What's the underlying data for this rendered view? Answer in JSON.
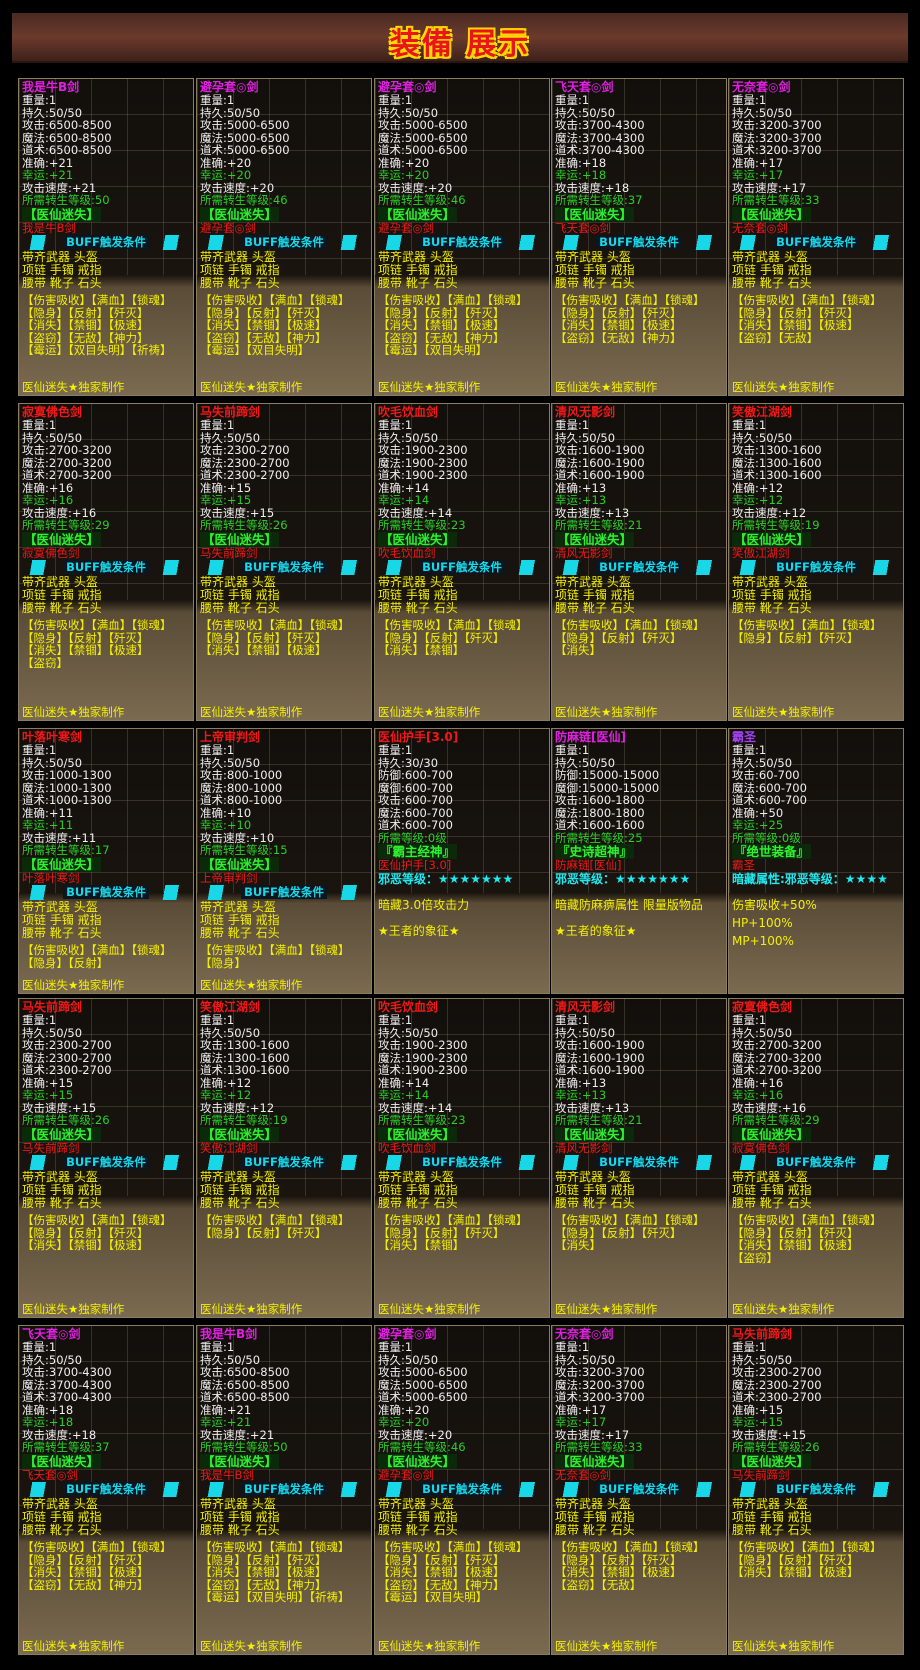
{
  "header": {
    "title": "装備 展示"
  },
  "common": {
    "buff_title": "BUFF触发条件",
    "buff": [
      "带齐武器 头盔",
      "项链 手镯 戒指",
      "腰带 靴子 石头"
    ],
    "footer": "医仙迷失★独家制作",
    "tag": "【医仙迷失】"
  },
  "colors": {
    "magenta": "#e020e0",
    "red": "#f01818",
    "green": "#28d028",
    "yellow": "#f4f000",
    "cyan": "#20e8f0"
  },
  "cards": [
    {
      "name": "我是牛B剑",
      "nc": "#e020e0",
      "lines": [
        "重量:1",
        "持久:50/50",
        "攻击:6500-8500",
        "魔法:6500-8500",
        "道术:6500-8500",
        "准确:+21"
      ],
      "luck": "幸运:+21",
      "speed": "攻击速度:+21",
      "req": "所需转生等级:50",
      "sub": "我是牛B剑",
      "skills": [
        "【伤害吸收】【满血】【锁魂】",
        "【隐身】【反射】【歼灭】",
        "【消失】【禁锢】【极速】",
        "【盗窃】【无敌】【神力】",
        "【霉运】【双目失明】【祈祷】"
      ]
    },
    {
      "name": "避孕套◎剑",
      "nc": "#e020e0",
      "lines": [
        "重量:1",
        "持久:50/50",
        "攻击:5000-6500",
        "魔法:5000-6500",
        "道术:5000-6500",
        "准确:+20"
      ],
      "luck": "幸运:+20",
      "speed": "攻击速度:+20",
      "req": "所需转生等级:46",
      "sub": "避孕套◎剑",
      "skills": [
        "【伤害吸收】【满血】【锁魂】",
        "【隐身】【反射】【歼灭】",
        "【消失】【禁锢】【极速】",
        "【盗窃】【无敌】【神力】",
        "【霉运】【双目失明】"
      ]
    },
    {
      "name": "避孕套◎剑",
      "nc": "#e020e0",
      "lines": [
        "重量:1",
        "持久:50/50",
        "攻击:5000-6500",
        "魔法:5000-6500",
        "道术:5000-6500",
        "准确:+20"
      ],
      "luck": "幸运:+20",
      "speed": "攻击速度:+20",
      "req": "所需转生等级:46",
      "sub": "避孕套◎剑",
      "skills": [
        "【伤害吸收】【满血】【锁魂】",
        "【隐身】【反射】【歼灭】",
        "【消失】【禁锢】【极速】",
        "【盗窃】【无敌】【神力】",
        "【霉运】【双目失明】"
      ]
    },
    {
      "name": "飞天套◎剑",
      "nc": "#e020e0",
      "lines": [
        "重量:1",
        "持久:50/50",
        "攻击:3700-4300",
        "魔法:3700-4300",
        "道术:3700-4300",
        "准确:+18"
      ],
      "luck": "幸运:+18",
      "speed": "攻击速度:+18",
      "req": "所需转生等级:37",
      "sub": "飞天套◎剑",
      "skills": [
        "【伤害吸收】【满血】【锁魂】",
        "【隐身】【反射】【歼灭】",
        "【消失】【禁锢】【极速】",
        "【盗窃】【无敌】【神力】"
      ]
    },
    {
      "name": "无奈套◎剑",
      "nc": "#e020e0",
      "lines": [
        "重量:1",
        "持久:50/50",
        "攻击:3200-3700",
        "魔法:3200-3700",
        "道术:3200-3700",
        "准确:+17"
      ],
      "luck": "幸运:+17",
      "speed": "攻击速度:+17",
      "req": "所需转生等级:33",
      "sub": "无奈套◎剑",
      "skills": [
        "【伤害吸收】【满血】【锁魂】",
        "【隐身】【反射】【歼灭】",
        "【消失】【禁锢】【极速】",
        "【盗窃】【无敌】"
      ]
    },
    {
      "name": "寂寞佛色剑",
      "nc": "#f01818",
      "lines": [
        "重量:1",
        "持久:50/50",
        "攻击:2700-3200",
        "魔法:2700-3200",
        "道术:2700-3200",
        "准确:+16"
      ],
      "luck": "幸运:+16",
      "speed": "攻击速度:+16",
      "req": "所需转生等级:29",
      "sub": "寂寞佛色剑",
      "skills": [
        "【伤害吸收】【满血】【锁魂】",
        "【隐身】【反射】【歼灭】",
        "【消失】【禁锢】【极速】",
        "【盗窃】"
      ]
    },
    {
      "name": "马失前蹄剑",
      "nc": "#f01818",
      "lines": [
        "重量:1",
        "持久:50/50",
        "攻击:2300-2700",
        "魔法:2300-2700",
        "道术:2300-2700",
        "准确:+15"
      ],
      "luck": "幸运:+15",
      "speed": "攻击速度:+15",
      "req": "所需转生等级:26",
      "sub": "马失前蹄剑",
      "skills": [
        "【伤害吸收】【满血】【锁魂】",
        "【隐身】【反射】【歼灭】",
        "【消失】【禁锢】【极速】"
      ]
    },
    {
      "name": "吹毛饮血剑",
      "nc": "#f01818",
      "lines": [
        "重量:1",
        "持久:50/50",
        "攻击:1900-2300",
        "魔法:1900-2300",
        "道术:1900-2300",
        "准确:+14"
      ],
      "luck": "幸运:+14",
      "speed": "攻击速度:+14",
      "req": "所需转生等级:23",
      "sub": "吹毛饮血剑",
      "skills": [
        "【伤害吸收】【满血】【锁魂】",
        "【隐身】【反射】【歼灭】",
        "【消失】【禁锢】"
      ]
    },
    {
      "name": "清风无影剑",
      "nc": "#f01818",
      "lines": [
        "重量:1",
        "持久:50/50",
        "攻击:1600-1900",
        "魔法:1600-1900",
        "道术:1600-1900",
        "准确:+13"
      ],
      "luck": "幸运:+13",
      "speed": "攻击速度:+13",
      "req": "所需转生等级:21",
      "sub": "清风无影剑",
      "skills": [
        "【伤害吸收】【满血】【锁魂】",
        "【隐身】【反射】【歼灭】",
        "【消失】"
      ]
    },
    {
      "name": "笑傲江湖剑",
      "nc": "#f01818",
      "lines": [
        "重量:1",
        "持久:50/50",
        "攻击:1300-1600",
        "魔法:1300-1600",
        "道术:1300-1600",
        "准确:+12"
      ],
      "luck": "幸运:+12",
      "speed": "攻击速度:+12",
      "req": "所需转生等级:19",
      "sub": "笑傲江湖剑",
      "skills": [
        "【伤害吸收】【满血】【锁魂】",
        "【隐身】【反射】【歼灭】"
      ]
    },
    {
      "name": "叶落叶寒剑",
      "nc": "#f01818",
      "lines": [
        "重量:1",
        "持久:50/50",
        "攻击:1000-1300",
        "魔法:1000-1300",
        "道术:1000-1300",
        "准确:+11"
      ],
      "luck": "幸运:+11",
      "speed": "攻击速度:+11",
      "req": "所需转生等级:17",
      "sub": "叶落叶寒剑",
      "skills": [
        "【伤害吸收】【满血】【锁魂】",
        "【隐身】【反射】"
      ]
    },
    {
      "name": "上帝审判剑",
      "nc": "#f01818",
      "lines": [
        "重量:1",
        "持久:50/50",
        "攻击:800-1000",
        "魔法:800-1000",
        "道术:800-1000",
        "准确:+10"
      ],
      "luck": "幸运:+10",
      "speed": "攻击速度:+10",
      "req": "所需转生等级:15",
      "sub": "上帝审判剑",
      "skills": [
        "【伤害吸收】【满血】【锁魂】",
        "【隐身】"
      ]
    },
    {
      "special": true,
      "name": "医仙护手[3.0]",
      "nc": "#f01818",
      "lines": [
        "重量:1",
        "持久:30/30",
        "防御:600-700",
        "魔御:600-700",
        "攻击:600-700",
        "魔法:600-700",
        "道术:600-700"
      ],
      "green": [
        "所需等级:0级"
      ],
      "stag": "『霸主经神』",
      "sub": "医仙护手[3.0]",
      "evil": "邪恶等级：★★★★★★★",
      "notes": [
        "暗藏3.0倍攻击力",
        "★王者的象征★"
      ]
    },
    {
      "special": true,
      "name": "防麻链[医仙]",
      "nc": "#e020e0",
      "lines": [
        "重量:1",
        "持久:50/50",
        "防御:15000-15000",
        "魔御:15000-15000",
        "攻击:1600-1800",
        "魔法:1800-1800",
        "道术:1600-1600"
      ],
      "green": [
        "所需转生等级:25"
      ],
      "stag": "『史诗超神』",
      "sub": "防麻链[医仙]",
      "evil": "邪恶等级：★★★★★★★",
      "notes": [
        "暗藏防麻痹属性 限量版物品",
        "★王者的象征★"
      ]
    },
    {
      "special": true,
      "name": "霸圣",
      "nc": "#a040f0",
      "lines": [
        "重量:1",
        "持久:50/50",
        "攻击:60-700",
        "魔法:600-700",
        "道术:600-700",
        "准确:+50"
      ],
      "green": [
        "幸运:+25",
        "所需等级:0级"
      ],
      "stag": "『绝世装备』",
      "sub": "霸圣",
      "evil": "暗藏属性:邪恶等级：★★★★",
      "notes": [
        "伤害吸收+50%",
        "HP+100%",
        "MP+100%"
      ]
    },
    {
      "name": "马失前蹄剑",
      "nc": "#f01818",
      "lines": [
        "重量:1",
        "持久:50/50",
        "攻击:2300-2700",
        "魔法:2300-2700",
        "道术:2300-2700",
        "准确:+15"
      ],
      "luck": "幸运:+15",
      "speed": "攻击速度:+15",
      "req": "所需转生等级:26",
      "sub": "马失前蹄剑",
      "skills": [
        "【伤害吸收】【满血】【锁魂】",
        "【隐身】【反射】【歼灭】",
        "【消失】【禁锢】【极速】"
      ]
    },
    {
      "name": "笑傲江湖剑",
      "nc": "#f01818",
      "lines": [
        "重量:1",
        "持久:50/50",
        "攻击:1300-1600",
        "魔法:1300-1600",
        "道术:1300-1600",
        "准确:+12"
      ],
      "luck": "幸运:+12",
      "speed": "攻击速度:+12",
      "req": "所需转生等级:19",
      "sub": "笑傲江湖剑",
      "skills": [
        "【伤害吸收】【满血】【锁魂】",
        "【隐身】【反射】【歼灭】"
      ]
    },
    {
      "name": "吹毛饮血剑",
      "nc": "#f01818",
      "lines": [
        "重量:1",
        "持久:50/50",
        "攻击:1900-2300",
        "魔法:1900-2300",
        "道术:1900-2300",
        "准确:+14"
      ],
      "luck": "幸运:+14",
      "speed": "攻击速度:+14",
      "req": "所需转生等级:23",
      "sub": "吹毛饮血剑",
      "skills": [
        "【伤害吸收】【满血】【锁魂】",
        "【隐身】【反射】【歼灭】",
        "【消失】【禁锢】"
      ]
    },
    {
      "name": "清风无影剑",
      "nc": "#f01818",
      "lines": [
        "重量:1",
        "持久:50/50",
        "攻击:1600-1900",
        "魔法:1600-1900",
        "道术:1600-1900",
        "准确:+13"
      ],
      "luck": "幸运:+13",
      "speed": "攻击速度:+13",
      "req": "所需转生等级:21",
      "sub": "清风无影剑",
      "skills": [
        "【伤害吸收】【满血】【锁魂】",
        "【隐身】【反射】【歼灭】",
        "【消失】"
      ]
    },
    {
      "name": "寂寞佛色剑",
      "nc": "#f01818",
      "lines": [
        "重量:1",
        "持久:50/50",
        "攻击:2700-3200",
        "魔法:2700-3200",
        "道术:2700-3200",
        "准确:+16"
      ],
      "luck": "幸运:+16",
      "speed": "攻击速度:+16",
      "req": "所需转生等级:29",
      "sub": "寂寞佛色剑",
      "skills": [
        "【伤害吸收】【满血】【锁魂】",
        "【隐身】【反射】【歼灭】",
        "【消失】【禁锢】【极速】",
        "【盗窃】"
      ]
    },
    {
      "name": "飞天套◎剑",
      "nc": "#e020e0",
      "lines": [
        "重量:1",
        "持久:50/50",
        "攻击:3700-4300",
        "魔法:3700-4300",
        "道术:3700-4300",
        "准确:+18"
      ],
      "luck": "幸运:+18",
      "speed": "攻击速度:+18",
      "req": "所需转生等级:37",
      "sub": "飞天套◎剑",
      "skills": [
        "【伤害吸收】【满血】【锁魂】",
        "【隐身】【反射】【歼灭】",
        "【消失】【禁锢】【极速】",
        "【盗窃】【无敌】【神力】"
      ]
    },
    {
      "name": "我是牛B剑",
      "nc": "#e020e0",
      "lines": [
        "重量:1",
        "持久:50/50",
        "攻击:6500-8500",
        "魔法:6500-8500",
        "道术:6500-8500",
        "准确:+21"
      ],
      "luck": "幸运:+21",
      "speed": "攻击速度:+21",
      "req": "所需转生等级:50",
      "sub": "我是牛B剑",
      "skills": [
        "【伤害吸收】【满血】【锁魂】",
        "【隐身】【反射】【歼灭】",
        "【消失】【禁锢】【极速】",
        "【盗窃】【无敌】【神力】",
        "【霉运】【双目失明】【祈祷】"
      ]
    },
    {
      "name": "避孕套◎剑",
      "nc": "#e020e0",
      "lines": [
        "重量:1",
        "持久:50/50",
        "攻击:5000-6500",
        "魔法:5000-6500",
        "道术:5000-6500",
        "准确:+20"
      ],
      "luck": "幸运:+20",
      "speed": "攻击速度:+20",
      "req": "所需转生等级:46",
      "sub": "避孕套◎剑",
      "skills": [
        "【伤害吸收】【满血】【锁魂】",
        "【隐身】【反射】【歼灭】",
        "【消失】【禁锢】【极速】",
        "【盗窃】【无敌】【神力】",
        "【霉运】【双目失明】"
      ]
    },
    {
      "name": "无奈套◎剑",
      "nc": "#e020e0",
      "lines": [
        "重量:1",
        "持久:50/50",
        "攻击:3200-3700",
        "魔法:3200-3700",
        "道术:3200-3700",
        "准确:+17"
      ],
      "luck": "幸运:+17",
      "speed": "攻击速度:+17",
      "req": "所需转生等级:33",
      "sub": "无奈套◎剑",
      "skills": [
        "【伤害吸收】【满血】【锁魂】",
        "【隐身】【反射】【歼灭】",
        "【消失】【禁锢】【极速】",
        "【盗窃】【无敌】"
      ]
    },
    {
      "name": "马失前蹄剑",
      "nc": "#f01818",
      "lines": [
        "重量:1",
        "持久:50/50",
        "攻击:2300-2700",
        "魔法:2300-2700",
        "道术:2300-2700",
        "准确:+15"
      ],
      "luck": "幸运:+15",
      "speed": "攻击速度:+15",
      "req": "所需转生等级:26",
      "sub": "马失前蹄剑",
      "skills": [
        "【伤害吸收】【满血】【锁魂】",
        "【隐身】【反射】【歼灭】",
        "【消失】【禁锢】【极速】"
      ]
    }
  ]
}
